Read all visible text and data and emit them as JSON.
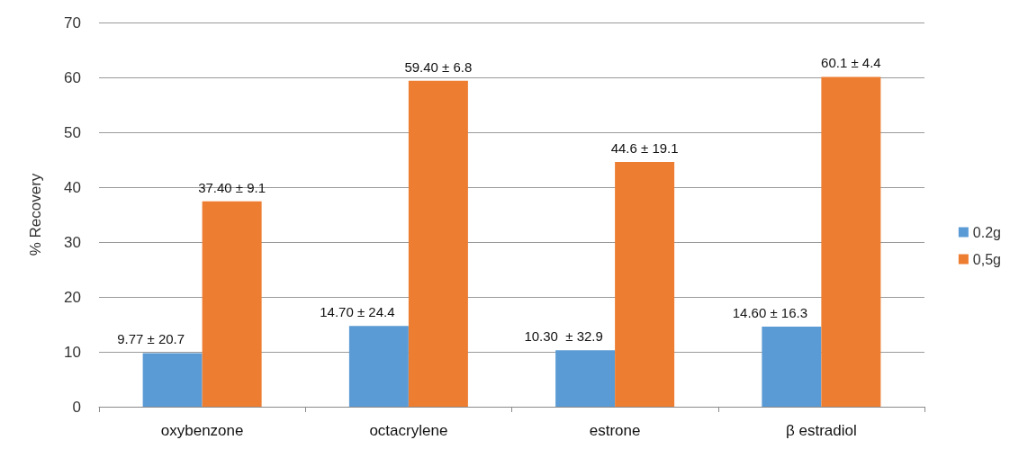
{
  "chart_data": {
    "type": "bar",
    "ylabel": "% Recovery",
    "categories": [
      "oxybenzone",
      "octacrylene",
      "estrone",
      "β estradiol"
    ],
    "series": [
      {
        "name": "0.2g",
        "color": "#5b9bd5",
        "values": [
          9.77,
          14.7,
          10.3,
          14.6
        ],
        "value_labels": [
          "9.77 ± 20.7",
          "14.70 ± 24.4",
          "10.30  ± 32.9",
          "14.60 ± 16.3"
        ]
      },
      {
        "name": "0,5g",
        "color": "#ed7d31",
        "values": [
          37.4,
          59.4,
          44.6,
          60.1
        ],
        "value_labels": [
          "37.40 ± 9.1",
          "59.40 ± 6.8",
          "44.6 ± 19.1",
          "60.1 ± 4.4"
        ]
      }
    ],
    "ylim": [
      0,
      70
    ],
    "yticks": [
      0,
      10,
      20,
      30,
      40,
      50,
      60,
      70
    ],
    "grid": "y",
    "legend": "right"
  }
}
